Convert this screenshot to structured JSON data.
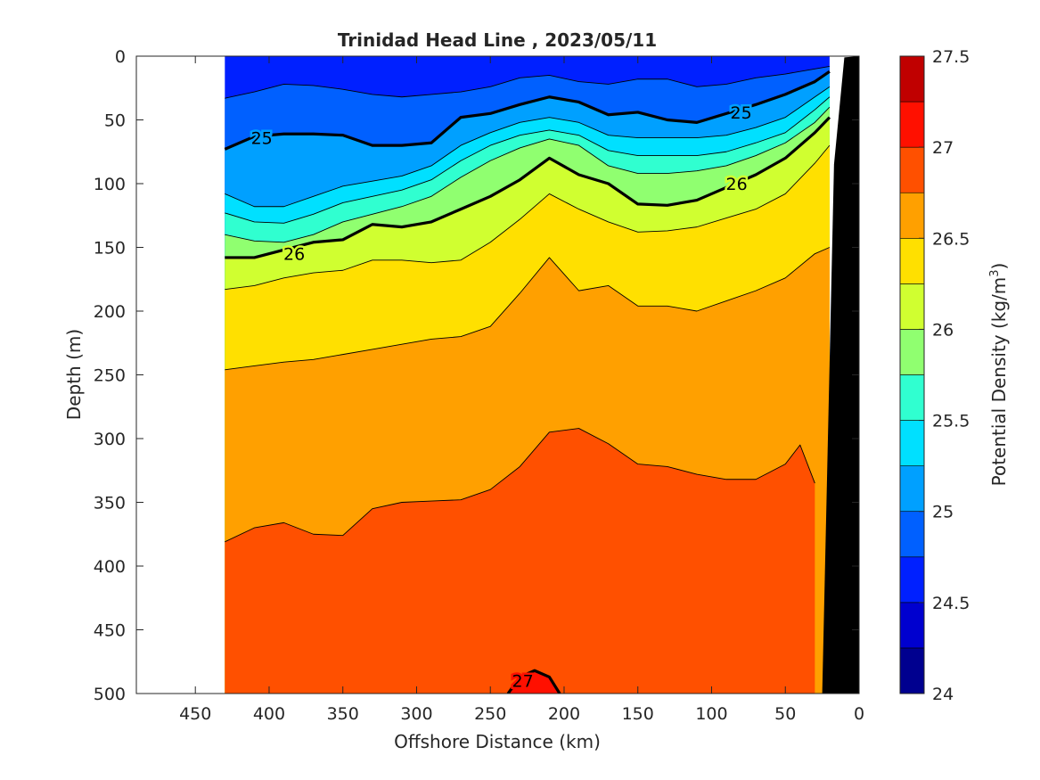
{
  "chart_data": {
    "type": "contour",
    "title": "Trinidad Head Line , 2023/05/11",
    "xlabel": "Offshore Distance (km)",
    "ylabel": "Depth (m)",
    "xlim": [
      490,
      0
    ],
    "ylim": [
      0,
      500
    ],
    "x_reversed": true,
    "y_reversed": true,
    "x_ticks": [
      450,
      400,
      350,
      300,
      250,
      200,
      150,
      100,
      50,
      0
    ],
    "y_ticks": [
      0,
      50,
      100,
      150,
      200,
      250,
      300,
      350,
      400,
      450,
      500
    ],
    "colorbar": {
      "label": "Potential Density (kg/m",
      "label_sup": "3",
      "label_end": ")",
      "range": [
        24,
        27.5
      ],
      "ticks": [
        24,
        24.5,
        25,
        25.5,
        26,
        26.5,
        27,
        27.5
      ],
      "levels": [
        24,
        24.25,
        24.5,
        24.75,
        25,
        25.25,
        25.5,
        25.75,
        26,
        26.25,
        26.5,
        26.75,
        27,
        27.25,
        27.5
      ],
      "colors": [
        "#00008f",
        "#0000cf",
        "#0020ff",
        "#0060ff",
        "#00a0ff",
        "#00e0ff",
        "#30ffd0",
        "#90ff70",
        "#d0ff30",
        "#ffe000",
        "#ffa000",
        "#ff5000",
        "#ff1000",
        "#c00000"
      ]
    },
    "data_extent_x": [
      430,
      20
    ],
    "contours": [
      {
        "level": 24.75,
        "x": [
          430,
          410,
          390,
          370,
          350,
          330,
          310,
          290,
          270,
          250,
          230,
          210,
          190,
          170,
          150,
          130,
          110,
          90,
          70,
          50,
          30,
          20
        ],
        "y": [
          33,
          28,
          22,
          23,
          26,
          30,
          32,
          30,
          28,
          24,
          17,
          15,
          20,
          22,
          18,
          18,
          24,
          22,
          17,
          14,
          10,
          8
        ]
      },
      {
        "level": 25,
        "x": [
          430,
          410,
          390,
          370,
          350,
          330,
          310,
          290,
          270,
          250,
          230,
          210,
          190,
          170,
          150,
          130,
          110,
          90,
          70,
          50,
          30,
          20
        ],
        "y": [
          73,
          63,
          61,
          61,
          62,
          70,
          70,
          68,
          48,
          45,
          38,
          32,
          36,
          46,
          44,
          50,
          52,
          45,
          38,
          30,
          20,
          12
        ],
        "label": "25",
        "labels_at": [
          [
            405,
            64
          ],
          [
            80,
            44
          ]
        ]
      },
      {
        "level": 25.25,
        "x": [
          430,
          410,
          390,
          370,
          350,
          330,
          310,
          290,
          270,
          250,
          230,
          210,
          190,
          170,
          150,
          130,
          110,
          90,
          70,
          50,
          30,
          20
        ],
        "y": [
          108,
          118,
          118,
          110,
          102,
          98,
          94,
          86,
          70,
          60,
          52,
          48,
          52,
          62,
          64,
          64,
          64,
          62,
          56,
          48,
          32,
          24
        ]
      },
      {
        "level": 25.5,
        "x": [
          430,
          410,
          390,
          370,
          350,
          330,
          310,
          290,
          270,
          250,
          230,
          210,
          190,
          170,
          150,
          130,
          110,
          90,
          70,
          50,
          30,
          20
        ],
        "y": [
          123,
          130,
          131,
          124,
          115,
          110,
          105,
          97,
          82,
          70,
          62,
          58,
          62,
          74,
          78,
          78,
          78,
          75,
          68,
          60,
          42,
          32
        ]
      },
      {
        "level": 25.75,
        "x": [
          430,
          410,
          390,
          370,
          350,
          330,
          310,
          290,
          270,
          250,
          230,
          210,
          190,
          170,
          150,
          130,
          110,
          90,
          70,
          50,
          30,
          20
        ],
        "y": [
          140,
          145,
          146,
          140,
          130,
          124,
          118,
          110,
          95,
          82,
          72,
          65,
          70,
          86,
          92,
          92,
          90,
          86,
          78,
          68,
          52,
          40
        ]
      },
      {
        "level": 26,
        "x": [
          430,
          410,
          390,
          370,
          350,
          330,
          310,
          290,
          270,
          250,
          230,
          210,
          190,
          170,
          150,
          130,
          110,
          90,
          70,
          50,
          30,
          20
        ],
        "y": [
          158,
          158,
          152,
          146,
          144,
          132,
          134,
          130,
          120,
          110,
          97,
          80,
          93,
          100,
          116,
          117,
          113,
          103,
          93,
          80,
          60,
          48
        ],
        "label": "26",
        "labels_at": [
          [
            383,
            155
          ],
          [
            83,
            100
          ]
        ]
      },
      {
        "level": 26.25,
        "x": [
          430,
          410,
          390,
          370,
          350,
          330,
          310,
          290,
          270,
          250,
          230,
          210,
          190,
          170,
          150,
          130,
          110,
          90,
          70,
          50,
          30,
          20
        ],
        "y": [
          183,
          180,
          174,
          170,
          168,
          160,
          160,
          162,
          160,
          146,
          128,
          108,
          120,
          130,
          138,
          137,
          134,
          127,
          120,
          108,
          84,
          70
        ]
      },
      {
        "level": 26.5,
        "x": [
          430,
          410,
          390,
          370,
          350,
          330,
          310,
          290,
          270,
          250,
          230,
          210,
          190,
          170,
          150,
          130,
          110,
          90,
          70,
          50,
          30,
          20
        ],
        "y": [
          246,
          243,
          240,
          238,
          234,
          230,
          226,
          222,
          220,
          212,
          186,
          158,
          184,
          180,
          196,
          196,
          200,
          192,
          184,
          174,
          155,
          150
        ]
      },
      {
        "level": 26.75,
        "x": [
          430,
          410,
          390,
          370,
          350,
          330,
          310,
          290,
          270,
          250,
          230,
          210,
          190,
          170,
          150,
          130,
          110,
          90,
          70,
          50,
          40,
          30
        ],
        "y": [
          381,
          370,
          366,
          375,
          376,
          355,
          350,
          349,
          348,
          340,
          322,
          295,
          292,
          304,
          320,
          322,
          328,
          332,
          332,
          320,
          305,
          335
        ]
      },
      {
        "level": 27,
        "x": [
          238,
          230,
          220,
          210,
          203
        ],
        "y": [
          500,
          487,
          482,
          487,
          500
        ],
        "label": "27",
        "labels_at": [
          [
            228,
            490
          ]
        ]
      }
    ],
    "land_mask": {
      "x": [
        25,
        17,
        10,
        0,
        0
      ],
      "y": [
        500,
        85,
        1,
        0,
        500
      ],
      "color": "#000000"
    }
  }
}
